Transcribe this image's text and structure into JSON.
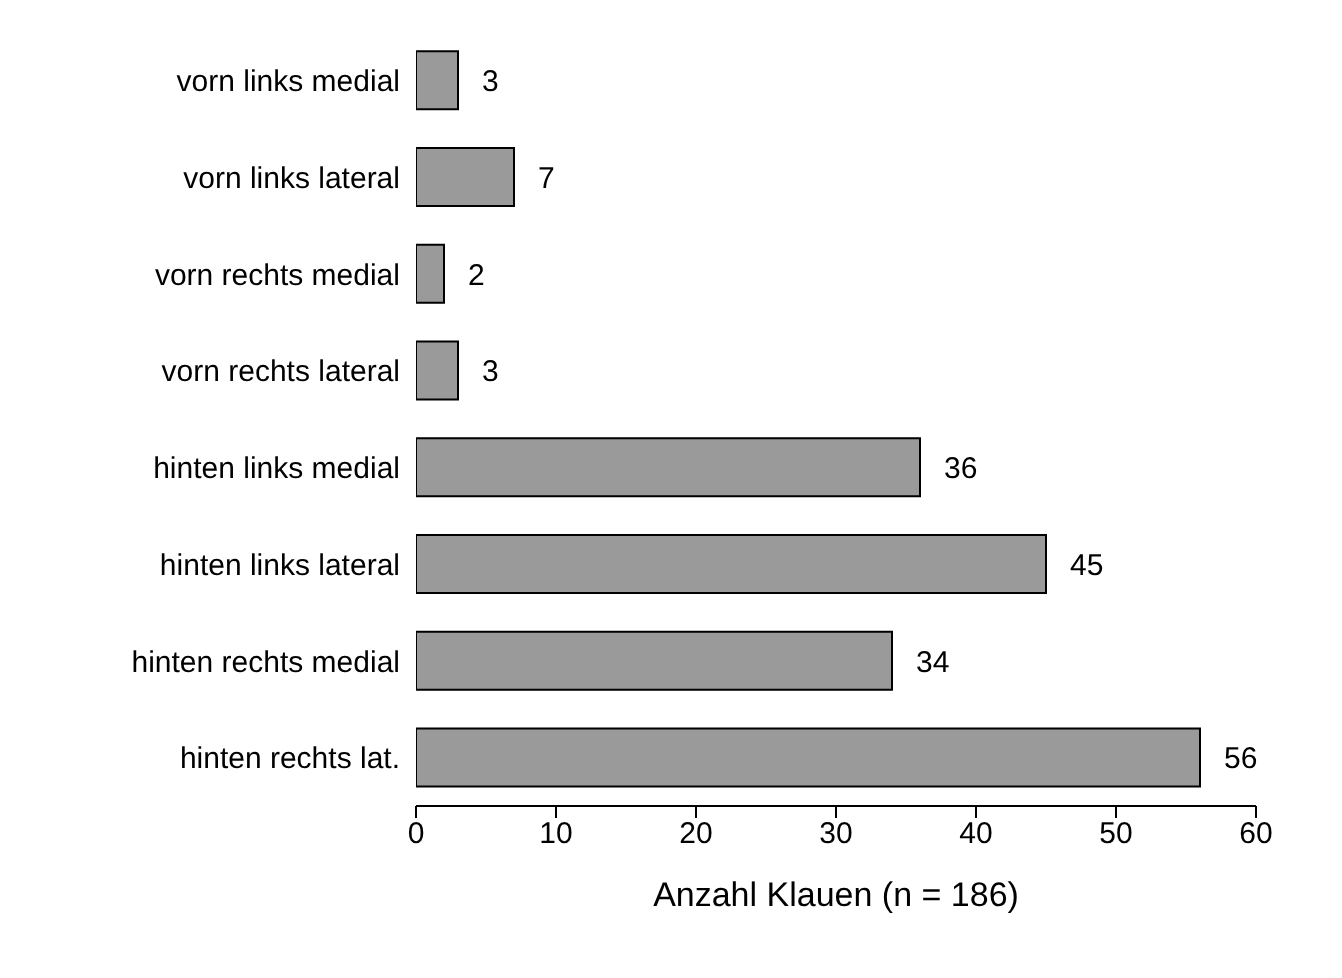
{
  "chart_data": {
    "type": "bar",
    "orientation": "horizontal",
    "xlabel": "Anzahl Klauen (n = 186)",
    "categories": [
      "vorn links medial",
      "vorn links lateral",
      "vorn rechts medial",
      "vorn rechts lateral",
      "hinten links medial",
      "hinten links lateral",
      "hinten rechts medial",
      "hinten rechts lat."
    ],
    "values": [
      3,
      7,
      2,
      3,
      36,
      45,
      34,
      56
    ],
    "color": "#9a9a9a",
    "xlim": [
      0,
      60
    ],
    "xticks": [
      0,
      10,
      20,
      30,
      40,
      50,
      60
    ],
    "data_labels": true,
    "grid": false
  }
}
